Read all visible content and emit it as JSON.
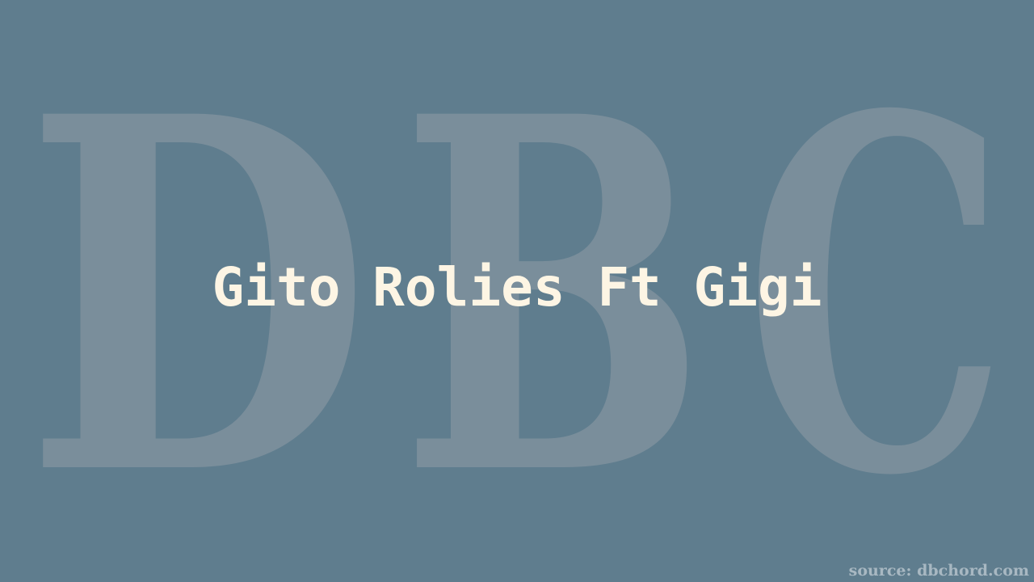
{
  "background": {
    "color": "#5f7d8e",
    "watermark_letters": [
      "D",
      "B",
      "C"
    ],
    "watermark_color": "#7a8e9b"
  },
  "title": {
    "text": "Gito Rolies Ft Gigi",
    "color": "#fdf5e4"
  },
  "footer": {
    "source_text": "source: dbchord.com"
  }
}
